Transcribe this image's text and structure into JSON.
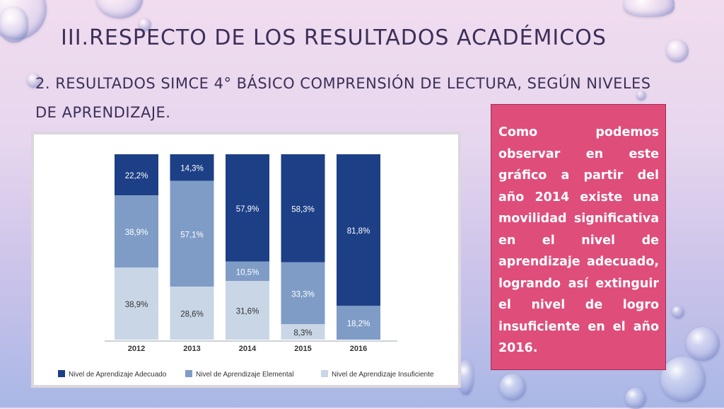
{
  "slide": {
    "title": "III.RESPECTO DE LOS RESULTADOS ACADÉMICOS",
    "subtitle": "2. RESULTADOS SIMCE 4° BÁSICO COMPRENSIÓN DE LECTURA, SEGÚN NIVELES DE APRENDIZAJE.",
    "callout": "Como podemos observar en este gráfico a partir del año 2014 existe una movilidad significativa en el nivel de aprendizaje adecuado, logrando así extinguir el nivel de logro insuficiente en el año 2016."
  },
  "colors": {
    "adecuado": "#1d3f86",
    "elemental": "#7f9cc6",
    "insuficiente": "#c9d6e6",
    "callout_bg": "#df4d7b",
    "title_text": "#3c2f58"
  },
  "chart_data": {
    "type": "bar",
    "stacked": true,
    "normalized_percent": true,
    "title": "",
    "xlabel": "",
    "ylabel": "",
    "categories": [
      "2012",
      "2013",
      "2014",
      "2015",
      "2016"
    ],
    "series": [
      {
        "name": "Nivel de Aprendizaje Adecuado",
        "values": [
          22.2,
          14.3,
          57.9,
          58.3,
          81.8
        ],
        "labels": [
          "22,2%",
          "14,3%",
          "57,9%",
          "58,3%",
          "81,8%"
        ]
      },
      {
        "name": "Nivel de Aprendizaje Elemental",
        "values": [
          38.9,
          57.1,
          10.5,
          33.3,
          18.2
        ],
        "labels": [
          "38,9%",
          "57,1%",
          "10,5%",
          "33,3%",
          "18,2%"
        ]
      },
      {
        "name": "Nivel de Aprendizaje Insuficiente",
        "values": [
          38.9,
          28.6,
          31.6,
          8.3,
          0
        ],
        "labels": [
          "38,9%",
          "28,6%",
          "31,6%",
          "8,3%",
          ""
        ]
      }
    ],
    "legend_position": "bottom",
    "grid": false
  }
}
